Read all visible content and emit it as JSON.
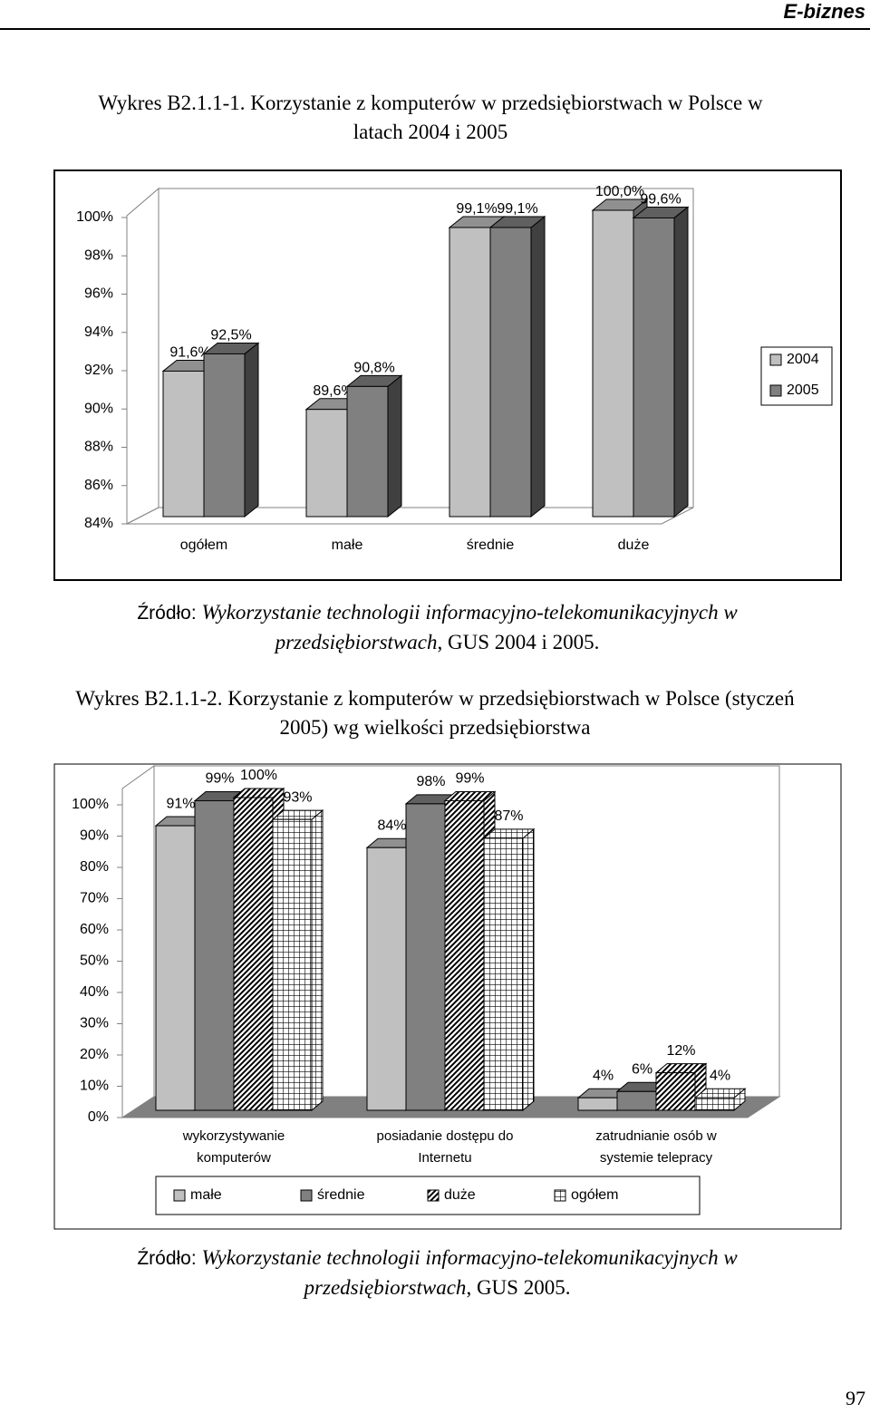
{
  "header": "E-biznes",
  "chart_data": [
    {
      "type": "bar",
      "three_d": true,
      "title": "Wykres B2.1.1-1. Korzystanie z komputerów w przedsiębiorstwach w Polsce w latach 2004 i 2005",
      "categories": [
        "ogółem",
        "małe",
        "średnie",
        "duże"
      ],
      "series": [
        {
          "name": "2004",
          "color": "#c0c0c0",
          "values": [
            91.6,
            89.6,
            99.1,
            100.0
          ],
          "value_labels": [
            "91,6%",
            "89,6%",
            "99,1%",
            "100,0%"
          ]
        },
        {
          "name": "2005",
          "color": "#808080",
          "values": [
            92.5,
            90.8,
            99.1,
            99.6
          ],
          "value_labels": [
            "92,5%",
            "90,8%",
            "99,1%",
            "99,6%"
          ]
        }
      ],
      "ylim": [
        84,
        100
      ],
      "yticks": [
        {
          "value": 84,
          "label": "84%"
        },
        {
          "value": 86,
          "label": "86%"
        },
        {
          "value": 88,
          "label": "88%"
        },
        {
          "value": 90,
          "label": "90%"
        },
        {
          "value": 92,
          "label": "92%"
        },
        {
          "value": 94,
          "label": "94%"
        },
        {
          "value": 96,
          "label": "96%"
        },
        {
          "value": 98,
          "label": "98%"
        },
        {
          "value": 100,
          "label": "100%"
        }
      ],
      "legend": "right"
    },
    {
      "type": "bar",
      "three_d": true,
      "title": "Wykres B2.1.1-2. Korzystanie z komputerów w przedsiębiorstwach w Polsce (styczeń 2005) wg wielkości przedsiębiorstwa",
      "categories": [
        "wykorzystywanie komputerów",
        "posiadanie dostępu do Internetu",
        "zatrudnianie osób w systemie telepracy"
      ],
      "series": [
        {
          "name": "małe",
          "color": "#c0c0c0",
          "values": [
            91,
            84,
            4
          ],
          "value_labels": [
            "91%",
            "84%",
            "4%"
          ]
        },
        {
          "name": "średnie",
          "color": "#808080",
          "values": [
            99,
            98,
            6
          ],
          "value_labels": [
            "99%",
            "98%",
            "6%"
          ]
        },
        {
          "name": "duże",
          "color": "#ffffff",
          "pattern": "diagonal",
          "values": [
            100,
            99,
            12
          ],
          "value_labels": [
            "100%",
            "99%",
            "12%"
          ]
        },
        {
          "name": "ogółem",
          "color": "#ffffff",
          "pattern": "grid",
          "values": [
            93,
            87,
            4
          ],
          "value_labels": [
            "93%",
            "87%",
            "4%"
          ]
        }
      ],
      "ylim": [
        0,
        100
      ],
      "yticks": [
        {
          "value": 0,
          "label": "0%"
        },
        {
          "value": 10,
          "label": "10%"
        },
        {
          "value": 20,
          "label": "20%"
        },
        {
          "value": 30,
          "label": "30%"
        },
        {
          "value": 40,
          "label": "40%"
        },
        {
          "value": 50,
          "label": "50%"
        },
        {
          "value": 60,
          "label": "60%"
        },
        {
          "value": 70,
          "label": "70%"
        },
        {
          "value": 80,
          "label": "80%"
        },
        {
          "value": 90,
          "label": "90%"
        },
        {
          "value": 100,
          "label": "100%"
        }
      ],
      "legend": "bottom"
    }
  ],
  "sources": [
    {
      "label": "Źródło:",
      "title": "Wykorzystanie technologii informacyjno-telekomunikacyjnych w przedsiębiorstwach",
      "publisher": ", GUS 2004 i 2005."
    },
    {
      "label": "Źródło:",
      "title": "Wykorzystanie technologii informacyjno-telekomunikacyjnych w przedsiębiorstwach",
      "publisher": ", GUS 2005."
    }
  ],
  "page_number": "97"
}
